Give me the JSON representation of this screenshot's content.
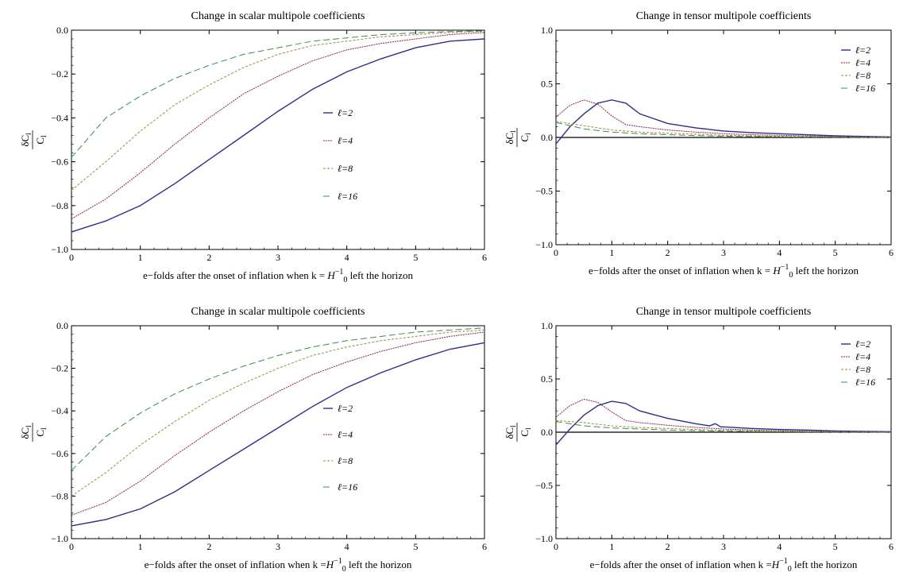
{
  "colors": {
    "l2": "#2e2e8e",
    "l4": "#8e2352",
    "l8": "#9c8a3a",
    "l16": "#3a8e4a",
    "axis": "#000000"
  },
  "ylabel": {
    "numerator": "δC",
    "numerator_sub": "l",
    "denominator": "C",
    "denominator_sub": "l"
  },
  "chart_data": [
    {
      "type": "line",
      "title": "Change in scalar multipole coefficients",
      "xlabel_parts": [
        "e−folds after the onset of inflation when k = ",
        "H",
        "−1",
        "0",
        " left the horizon"
      ],
      "xlim": [
        0,
        6
      ],
      "ylim": [
        -1.0,
        0.0
      ],
      "xticks": [
        "0",
        "1",
        "2",
        "3",
        "4",
        "5",
        "6"
      ],
      "yticks": [
        "0.0",
        "−0.2",
        "−0.4",
        "−0.6",
        "−0.8",
        "−1.0"
      ],
      "xtick_values": [
        0,
        1,
        2,
        3,
        4,
        5,
        6
      ],
      "ytick_values": [
        0.0,
        -0.2,
        -0.4,
        -0.6,
        -0.8,
        -1.0
      ],
      "legend": "right-middle",
      "series": [
        {
          "name": "ℓ=2",
          "x": [
            0,
            0.5,
            1.0,
            1.5,
            2.0,
            2.5,
            3.0,
            3.5,
            4.0,
            4.5,
            5.0,
            5.5,
            6.0
          ],
          "y": [
            -0.92,
            -0.87,
            -0.8,
            -0.7,
            -0.59,
            -0.48,
            -0.37,
            -0.27,
            -0.19,
            -0.13,
            -0.08,
            -0.05,
            -0.04
          ]
        },
        {
          "name": "ℓ=4",
          "x": [
            0,
            0.5,
            1.0,
            1.5,
            2.0,
            2.5,
            3.0,
            3.5,
            4.0,
            4.5,
            5.0,
            5.5,
            6.0
          ],
          "y": [
            -0.86,
            -0.77,
            -0.65,
            -0.52,
            -0.4,
            -0.29,
            -0.21,
            -0.14,
            -0.09,
            -0.06,
            -0.04,
            -0.02,
            -0.01
          ]
        },
        {
          "name": "ℓ=8",
          "x": [
            0,
            0.5,
            1.0,
            1.5,
            2.0,
            2.5,
            3.0,
            3.5,
            4.0,
            4.5,
            5.0,
            5.5,
            6.0
          ],
          "y": [
            -0.73,
            -0.6,
            -0.46,
            -0.34,
            -0.25,
            -0.17,
            -0.11,
            -0.07,
            -0.05,
            -0.03,
            -0.02,
            -0.01,
            -0.005
          ]
        },
        {
          "name": "ℓ=16",
          "x": [
            0,
            0.5,
            1.0,
            1.5,
            2.0,
            2.5,
            3.0,
            3.5,
            4.0,
            4.5,
            5.0,
            5.5,
            6.0
          ],
          "y": [
            -0.58,
            -0.4,
            -0.3,
            -0.22,
            -0.16,
            -0.11,
            -0.08,
            -0.05,
            -0.035,
            -0.02,
            -0.012,
            -0.006,
            -0.003
          ]
        }
      ]
    },
    {
      "type": "line",
      "title": "Change in tensor multipole coefficients",
      "xlabel_parts": [
        "e−folds after the onset of inflation when k = ",
        "H",
        "−1",
        "0",
        " left the horizon"
      ],
      "xlim": [
        0,
        6
      ],
      "ylim": [
        -1.0,
        1.0
      ],
      "xticks": [
        "0",
        "1",
        "2",
        "3",
        "4",
        "5",
        "6"
      ],
      "yticks": [
        "1.0",
        "0.5",
        "0.0",
        "−0.5",
        "−1.0"
      ],
      "xtick_values": [
        0,
        1,
        2,
        3,
        4,
        5,
        6
      ],
      "ytick_values": [
        1.0,
        0.5,
        0.0,
        -0.5,
        -1.0
      ],
      "zero_line": true,
      "legend": "top-right",
      "series": [
        {
          "name": "ℓ=2",
          "x": [
            0,
            0.25,
            0.5,
            0.75,
            1.0,
            1.25,
            1.5,
            2.0,
            2.5,
            3.0,
            3.5,
            4.0,
            4.5,
            5.0,
            5.5,
            6.0
          ],
          "y": [
            -0.06,
            0.1,
            0.22,
            0.32,
            0.35,
            0.32,
            0.22,
            0.13,
            0.09,
            0.06,
            0.045,
            0.035,
            0.025,
            0.015,
            0.01,
            0.005
          ]
        },
        {
          "name": "ℓ=4",
          "x": [
            0,
            0.25,
            0.5,
            0.75,
            1.0,
            1.25,
            1.5,
            2.0,
            2.5,
            3.0,
            3.5,
            4.0,
            4.5,
            5.0,
            5.5,
            6.0
          ],
          "y": [
            0.19,
            0.3,
            0.35,
            0.31,
            0.2,
            0.12,
            0.1,
            0.07,
            0.05,
            0.035,
            0.025,
            0.02,
            0.015,
            0.01,
            0.005,
            0.003
          ]
        },
        {
          "name": "ℓ=8",
          "x": [
            0,
            0.5,
            1.0,
            1.5,
            2.0,
            2.5,
            3.0,
            3.5,
            4.0,
            4.5,
            5.0,
            5.5,
            6.0
          ],
          "y": [
            0.15,
            0.11,
            0.07,
            0.05,
            0.04,
            0.03,
            0.02,
            0.015,
            0.01,
            0.008,
            0.005,
            0.003,
            0.002
          ]
        },
        {
          "name": "ℓ=16",
          "x": [
            0,
            0.5,
            1.0,
            1.5,
            2.0,
            2.5,
            3.0,
            3.5,
            4.0,
            4.5,
            5.0,
            5.5,
            6.0
          ],
          "y": [
            0.14,
            0.08,
            0.05,
            0.035,
            0.025,
            0.018,
            0.012,
            0.008,
            0.005,
            0.003,
            0.002,
            0.001,
            0.001
          ]
        }
      ]
    },
    {
      "type": "line",
      "title": "Change in scalar multipole coefficients",
      "xlabel_parts": [
        "e−folds after the onset of inflation when k =",
        "H",
        "−1",
        "0",
        " left the horizon"
      ],
      "xlim": [
        0,
        6
      ],
      "ylim": [
        -1.0,
        0.0
      ],
      "xticks": [
        "0",
        "1",
        "2",
        "3",
        "4",
        "5",
        "6"
      ],
      "yticks": [
        "0.0",
        "−0.2",
        "−0.4",
        "−0.6",
        "−0.8",
        "−1.0"
      ],
      "xtick_values": [
        0,
        1,
        2,
        3,
        4,
        5,
        6
      ],
      "ytick_values": [
        0.0,
        -0.2,
        -0.4,
        -0.6,
        -0.8,
        -1.0
      ],
      "legend": "right-middle",
      "series": [
        {
          "name": "ℓ=2",
          "x": [
            0,
            0.5,
            1.0,
            1.5,
            2.0,
            2.5,
            3.0,
            3.5,
            4.0,
            4.5,
            5.0,
            5.5,
            6.0
          ],
          "y": [
            -0.94,
            -0.91,
            -0.86,
            -0.78,
            -0.68,
            -0.58,
            -0.48,
            -0.38,
            -0.29,
            -0.22,
            -0.16,
            -0.11,
            -0.08
          ]
        },
        {
          "name": "ℓ=4",
          "x": [
            0,
            0.5,
            1.0,
            1.5,
            2.0,
            2.5,
            3.0,
            3.5,
            4.0,
            4.5,
            5.0,
            5.5,
            6.0
          ],
          "y": [
            -0.89,
            -0.83,
            -0.73,
            -0.61,
            -0.5,
            -0.4,
            -0.31,
            -0.23,
            -0.17,
            -0.12,
            -0.08,
            -0.05,
            -0.03
          ]
        },
        {
          "name": "ℓ=8",
          "x": [
            0,
            0.5,
            1.0,
            1.5,
            2.0,
            2.5,
            3.0,
            3.5,
            4.0,
            4.5,
            5.0,
            5.5,
            6.0
          ],
          "y": [
            -0.8,
            -0.69,
            -0.56,
            -0.45,
            -0.35,
            -0.27,
            -0.2,
            -0.14,
            -0.1,
            -0.07,
            -0.05,
            -0.03,
            -0.02
          ]
        },
        {
          "name": "ℓ=16",
          "x": [
            0,
            0.5,
            1.0,
            1.5,
            2.0,
            2.5,
            3.0,
            3.5,
            4.0,
            4.5,
            5.0,
            5.5,
            6.0
          ],
          "y": [
            -0.68,
            -0.52,
            -0.41,
            -0.32,
            -0.25,
            -0.19,
            -0.14,
            -0.1,
            -0.07,
            -0.05,
            -0.03,
            -0.02,
            -0.01
          ]
        }
      ]
    },
    {
      "type": "line",
      "title": "Change in tensor multipole coefficients",
      "xlabel_parts": [
        "e−folds after the onset of inflation when k =",
        "H",
        "−1",
        "0",
        " left the horizon"
      ],
      "xlim": [
        0,
        6
      ],
      "ylim": [
        -1.0,
        1.0
      ],
      "xticks": [
        "0",
        "1",
        "2",
        "3",
        "4",
        "5",
        "6"
      ],
      "yticks": [
        "1.0",
        "0.5",
        "0.0",
        "−0.5",
        "−1.0"
      ],
      "xtick_values": [
        0,
        1,
        2,
        3,
        4,
        5,
        6
      ],
      "ytick_values": [
        1.0,
        0.5,
        0.0,
        -0.5,
        -1.0
      ],
      "zero_line": true,
      "legend": "top-right",
      "series": [
        {
          "name": "ℓ=2",
          "x": [
            0,
            0.25,
            0.5,
            0.75,
            1.0,
            1.25,
            1.5,
            2.0,
            2.5,
            2.75,
            2.85,
            2.95,
            3.0,
            3.5,
            4.0,
            4.5,
            5.0,
            5.5,
            6.0
          ],
          "y": [
            -0.12,
            0.03,
            0.16,
            0.25,
            0.29,
            0.27,
            0.2,
            0.13,
            0.08,
            0.06,
            0.08,
            0.05,
            0.05,
            0.035,
            0.025,
            0.02,
            0.012,
            0.008,
            0.005
          ]
        },
        {
          "name": "ℓ=4",
          "x": [
            0,
            0.25,
            0.5,
            0.75,
            1.0,
            1.25,
            1.5,
            2.0,
            2.5,
            3.0,
            3.5,
            4.0,
            4.5,
            5.0,
            5.5,
            6.0
          ],
          "y": [
            0.14,
            0.25,
            0.31,
            0.28,
            0.19,
            0.11,
            0.09,
            0.065,
            0.045,
            0.03,
            0.02,
            0.015,
            0.01,
            0.006,
            0.004,
            0.002
          ]
        },
        {
          "name": "ℓ=8",
          "x": [
            0,
            0.5,
            1.0,
            1.5,
            2.0,
            2.5,
            3.0,
            3.5,
            4.0,
            4.5,
            5.0,
            5.5,
            6.0
          ],
          "y": [
            0.11,
            0.09,
            0.06,
            0.045,
            0.035,
            0.025,
            0.018,
            0.012,
            0.008,
            0.005,
            0.003,
            0.002,
            0.001
          ]
        },
        {
          "name": "ℓ=16",
          "x": [
            0,
            0.5,
            1.0,
            1.5,
            2.0,
            2.5,
            3.0,
            3.5,
            4.0,
            4.5,
            5.0,
            5.5,
            6.0
          ],
          "y": [
            0.1,
            0.06,
            0.04,
            0.03,
            0.02,
            0.015,
            0.01,
            0.006,
            0.004,
            0.002,
            0.001,
            0.001,
            0.0
          ]
        }
      ]
    }
  ]
}
